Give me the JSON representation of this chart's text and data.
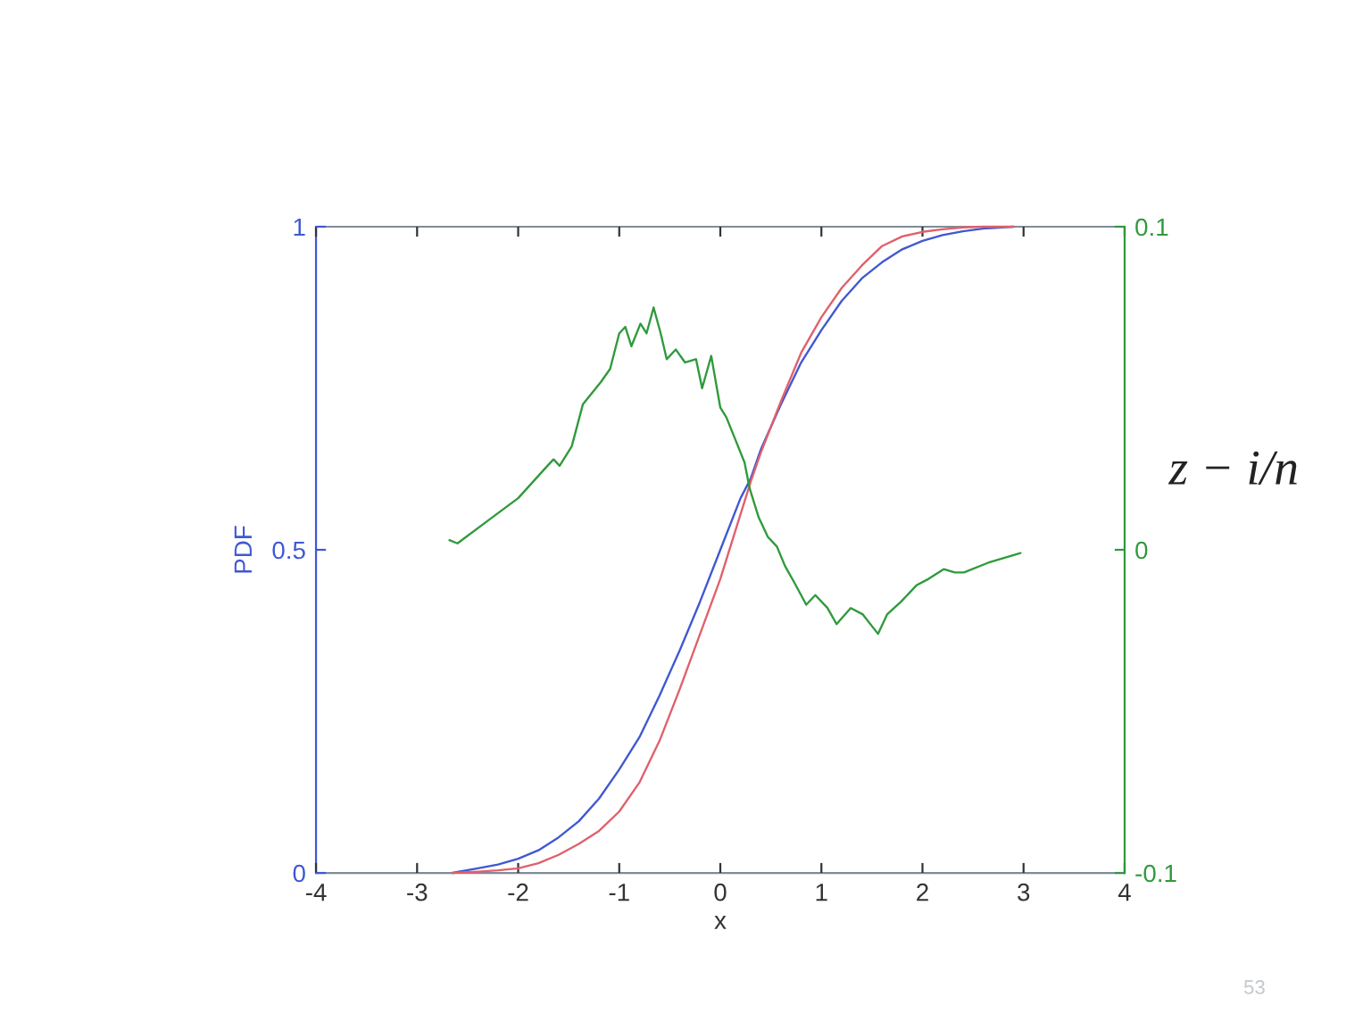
{
  "chart_data": {
    "type": "line",
    "xlabel": "x",
    "ylabel": "PDF",
    "y2label": "z − i/n",
    "annotations": [
      "53"
    ],
    "xlim": [
      -4,
      4
    ],
    "xticks": [
      -4,
      -3,
      -2,
      -1,
      0,
      1,
      2,
      3,
      4
    ],
    "ylim": [
      0,
      1
    ],
    "yticks": [
      0,
      0.5,
      1
    ],
    "y2lim": [
      -0.1,
      0.1
    ],
    "y2ticks": [
      -0.1,
      0,
      0.1
    ],
    "grid": false,
    "line_style": "solid",
    "marker": "none",
    "series": [
      {
        "color": "#3f58d2",
        "x": [
          -2.65,
          -2.4,
          -2.2,
          -2.0,
          -1.8,
          -1.6,
          -1.4,
          -1.2,
          -1.0,
          -0.8,
          -0.6,
          -0.4,
          -0.2,
          0.0,
          0.2,
          0.3,
          0.4,
          0.6,
          0.8,
          1.0,
          1.2,
          1.4,
          1.6,
          1.8,
          2.0,
          2.2,
          2.4,
          2.6,
          2.9
        ],
        "values": [
          0.0,
          0.007,
          0.013,
          0.022,
          0.035,
          0.055,
          0.08,
          0.115,
          0.16,
          0.21,
          0.275,
          0.345,
          0.42,
          0.5,
          0.58,
          0.61,
          0.655,
          0.725,
          0.79,
          0.84,
          0.885,
          0.92,
          0.945,
          0.965,
          0.978,
          0.987,
          0.993,
          0.997,
          1.0
        ]
      },
      {
        "color": "#e0606c",
        "x": [
          -2.65,
          -2.4,
          -2.2,
          -2.0,
          -1.8,
          -1.6,
          -1.4,
          -1.2,
          -1.0,
          -0.8,
          -0.6,
          -0.4,
          -0.2,
          0.0,
          0.2,
          0.3,
          0.4,
          0.6,
          0.8,
          1.0,
          1.2,
          1.4,
          1.6,
          1.8,
          2.0,
          2.2,
          2.4,
          2.6,
          2.9
        ],
        "values": [
          0.0,
          0.002,
          0.004,
          0.007,
          0.015,
          0.028,
          0.045,
          0.065,
          0.095,
          0.14,
          0.205,
          0.285,
          0.37,
          0.455,
          0.555,
          0.605,
          0.65,
          0.73,
          0.805,
          0.86,
          0.905,
          0.94,
          0.97,
          0.985,
          0.992,
          0.996,
          0.999,
          1.0,
          1.0
        ]
      },
      {
        "color": "#2f9a3c",
        "axis": "y2",
        "x": [
          -2.68,
          -2.6,
          -2.3,
          -2.0,
          -1.71,
          -1.65,
          -1.59,
          -1.47,
          -1.36,
          -1.18,
          -1.09,
          -1.0,
          -0.94,
          -0.88,
          -0.79,
          -0.73,
          -0.66,
          -0.59,
          -0.53,
          -0.44,
          -0.35,
          -0.24,
          -0.18,
          -0.09,
          0.0,
          0.06,
          0.15,
          0.24,
          0.29,
          0.38,
          0.47,
          0.56,
          0.64,
          0.73,
          0.85,
          0.94,
          1.06,
          1.15,
          1.29,
          1.41,
          1.56,
          1.65,
          1.79,
          1.94,
          2.06,
          2.21,
          2.32,
          2.41,
          2.65,
          2.97
        ],
        "values": [
          0.003,
          0.002,
          0.009,
          0.016,
          0.026,
          0.028,
          0.026,
          0.032,
          0.045,
          0.052,
          0.056,
          0.067,
          0.069,
          0.063,
          0.07,
          0.067,
          0.075,
          0.067,
          0.059,
          0.062,
          0.058,
          0.059,
          0.05,
          0.06,
          0.044,
          0.041,
          0.034,
          0.027,
          0.019,
          0.01,
          0.004,
          0.001,
          -0.005,
          -0.01,
          -0.017,
          -0.014,
          -0.018,
          -0.023,
          -0.018,
          -0.02,
          -0.026,
          -0.02,
          -0.016,
          -0.011,
          -0.009,
          -0.006,
          -0.007,
          -0.007,
          -0.004,
          -0.001
        ]
      }
    ]
  }
}
